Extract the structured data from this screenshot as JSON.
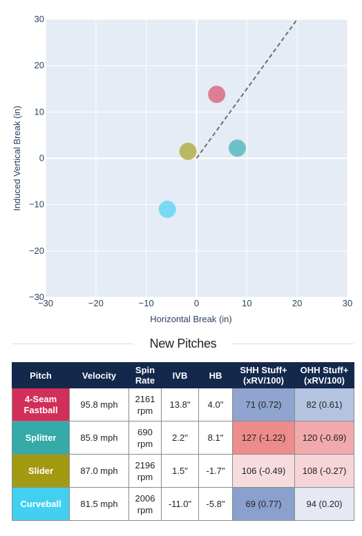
{
  "chart_data": {
    "type": "scatter",
    "xlabel": "Horizontal Break (in)",
    "ylabel": "Induced Vertical Break (in)",
    "xlim": [
      -30,
      30
    ],
    "ylim": [
      -30,
      30
    ],
    "xticks": [
      -30,
      -20,
      -10,
      0,
      10,
      20,
      30
    ],
    "yticks": [
      -30,
      -20,
      -10,
      0,
      10,
      20,
      30
    ],
    "grid": true,
    "series": [
      {
        "name": "4-Seam Fastball",
        "x": [
          4.0
        ],
        "y": [
          13.8
        ],
        "color": "#d8506e"
      },
      {
        "name": "Splitter",
        "x": [
          8.1
        ],
        "y": [
          2.2
        ],
        "color": "#3cb1b3"
      },
      {
        "name": "Slider",
        "x": [
          -1.7
        ],
        "y": [
          1.5
        ],
        "color": "#a8a422"
      },
      {
        "name": "Curveball",
        "x": [
          -5.8
        ],
        "y": [
          -11.0
        ],
        "color": "#4fd2f4"
      }
    ],
    "reference_line": {
      "x": [
        0,
        20
      ],
      "y": [
        0,
        30
      ],
      "style": "dashed",
      "color": "#6b6b6b"
    }
  },
  "colors": {
    "plot_bg": "#e5ecf6",
    "grid": "#ffffff",
    "header_bg": "#14284b"
  },
  "section_title": "New Pitches",
  "table": {
    "headers": {
      "pitch": "Pitch",
      "velocity": "Velocity",
      "spin_line1": "Spin",
      "spin_line2": "Rate",
      "ivb": "IVB",
      "hb": "HB",
      "shh_line1": "SHH Stuff+",
      "shh_line2": "(xRV/100)",
      "ohh_line1": "OHH Stuff+",
      "ohh_line2": "(xRV/100)"
    },
    "rows": [
      {
        "name_line1": "4-Seam",
        "name_line2": "Fastball",
        "name_color": "#d22e5a",
        "velocity": "95.8 mph",
        "spin": "2161",
        "spin_unit": "rpm",
        "ivb": "13.8\"",
        "hb": "4.0\"",
        "shh": "71 (0.72)",
        "shh_color": "#8fa4cf",
        "ohh": "82 (0.61)",
        "ohh_color": "#b4c3e0"
      },
      {
        "name_line1": "Splitter",
        "name_line2": "",
        "name_color": "#34aaa9",
        "velocity": "85.9 mph",
        "spin": "690",
        "spin_unit": "rpm",
        "ivb": "2.2\"",
        "hb": "8.1\"",
        "shh": "127 (-1.22)",
        "shh_color": "#ec8c8d",
        "ohh": "120 (-0.69)",
        "ohh_color": "#f1aaab"
      },
      {
        "name_line1": "Slider",
        "name_line2": "",
        "name_color": "#a29a11",
        "velocity": "87.0 mph",
        "spin": "2196",
        "spin_unit": "rpm",
        "ivb": "1.5\"",
        "hb": "-1.7\"",
        "shh": "106 (-0.49)",
        "shh_color": "#f6dcdf",
        "ohh": "108 (-0.27)",
        "ohh_color": "#f6d4d7"
      },
      {
        "name_line1": "Curveball",
        "name_line2": "",
        "name_color": "#43d0f0",
        "velocity": "81.5 mph",
        "spin": "2006",
        "spin_unit": "rpm",
        "ivb": "-11.0\"",
        "hb": "-5.8\"",
        "shh": "69 (0.77)",
        "shh_color": "#8aa0cd",
        "ohh": "94 (0.20)",
        "ohh_color": "#e6e9f3"
      }
    ]
  }
}
